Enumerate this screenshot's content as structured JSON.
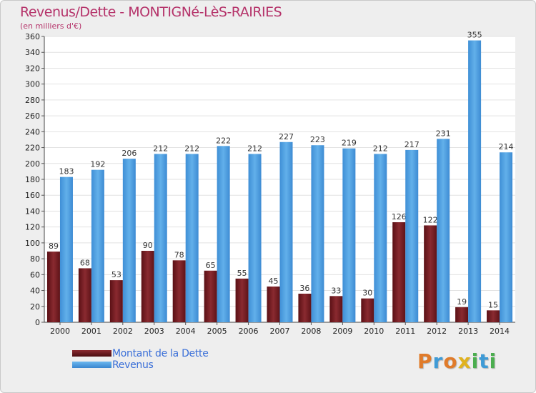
{
  "chart_data": {
    "type": "bar",
    "title": "Revenus/Dette - MONTIGNé-LèS-RAIRIES",
    "subtitle": "(en milliers d'€)",
    "categories": [
      "2000",
      "2001",
      "2002",
      "2003",
      "2004",
      "2005",
      "2006",
      "2007",
      "2008",
      "2009",
      "2010",
      "2011",
      "2012",
      "2013",
      "2014"
    ],
    "series": [
      {
        "name": "Montant de la Dette",
        "color": "#7a1c22",
        "values": [
          89,
          68,
          53,
          90,
          78,
          65,
          55,
          45,
          36,
          33,
          30,
          126,
          122,
          19,
          15
        ]
      },
      {
        "name": "Revenus",
        "color": "#4f9fe0",
        "values": [
          183,
          192,
          206,
          212,
          212,
          222,
          212,
          227,
          223,
          219,
          212,
          217,
          231,
          355,
          214
        ]
      }
    ],
    "ylim": [
      0,
      360
    ],
    "yticks": [
      0,
      20,
      40,
      60,
      80,
      100,
      120,
      140,
      160,
      180,
      200,
      220,
      240,
      260,
      280,
      300,
      320,
      340,
      360
    ],
    "grid": true,
    "legend": "bottom-left"
  },
  "logo": {
    "letters": [
      {
        "ch": "P",
        "color": "#e07b2a"
      },
      {
        "ch": "r",
        "color": "#3f9bd6"
      },
      {
        "ch": "o",
        "color": "#e07b2a"
      },
      {
        "ch": "x",
        "color": "#e0b21f"
      },
      {
        "ch": "i",
        "color": "#4bae4f"
      },
      {
        "ch": "t",
        "color": "#3f9bd6"
      },
      {
        "ch": "i",
        "color": "#4bae4f"
      }
    ]
  }
}
